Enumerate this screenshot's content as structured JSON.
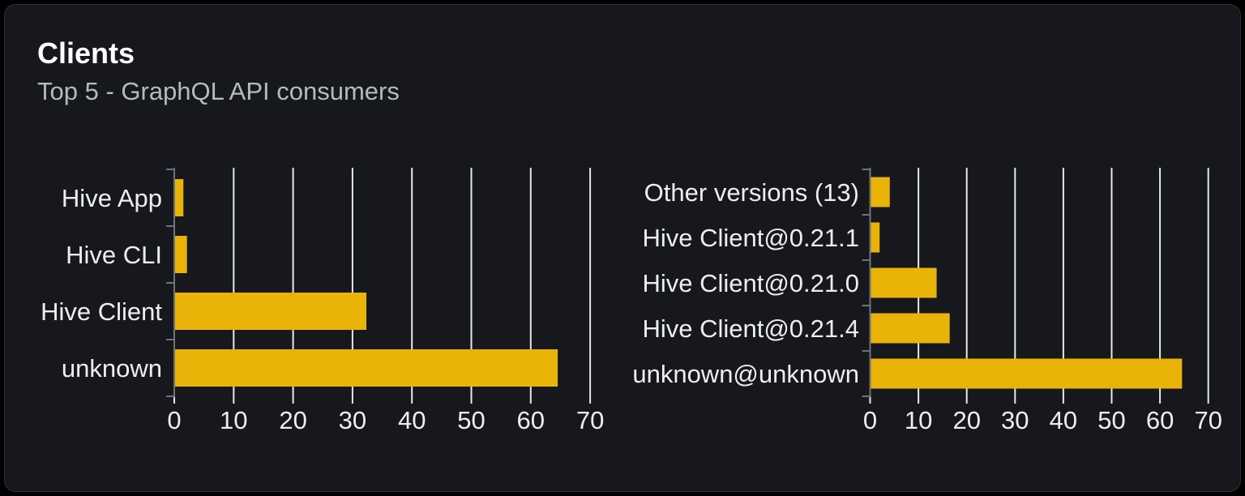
{
  "card": {
    "title": "Clients",
    "subtitle": "Top 5 - GraphQL API consumers"
  },
  "colors": {
    "page_bg": "#000000",
    "card_bg": "#16181e",
    "card_border": "#2b2e35",
    "bar": "#eab308",
    "gridline": "#e4e7ec",
    "axis": "#6e737b",
    "title_text": "#ffffff",
    "subtitle_text": "#b6babf",
    "tick_label": "#eceef0",
    "category_label": "#eceef0"
  },
  "chart_data": [
    {
      "type": "bar",
      "orientation": "horizontal",
      "title": "",
      "xlabel": "",
      "ylabel": "",
      "categories": [
        "Hive App",
        "Hive CLI",
        "Hive Client",
        "unknown"
      ],
      "values": [
        1.4,
        2.0,
        32.2,
        64.4
      ],
      "xlim": [
        0,
        70
      ],
      "xticks": [
        0,
        10,
        20,
        30,
        40,
        50,
        60,
        70
      ],
      "grid": true,
      "legend": false
    },
    {
      "type": "bar",
      "orientation": "horizontal",
      "title": "",
      "xlabel": "",
      "ylabel": "",
      "categories": [
        "Other versions (13)",
        "Hive Client@0.21.1",
        "Hive Client@0.21.0",
        "Hive Client@0.21.4",
        "unknown@unknown"
      ],
      "values": [
        3.9,
        1.8,
        13.6,
        16.3,
        64.4
      ],
      "xlim": [
        0,
        70
      ],
      "xticks": [
        0,
        10,
        20,
        30,
        40,
        50,
        60,
        70
      ],
      "grid": true,
      "legend": false
    }
  ]
}
